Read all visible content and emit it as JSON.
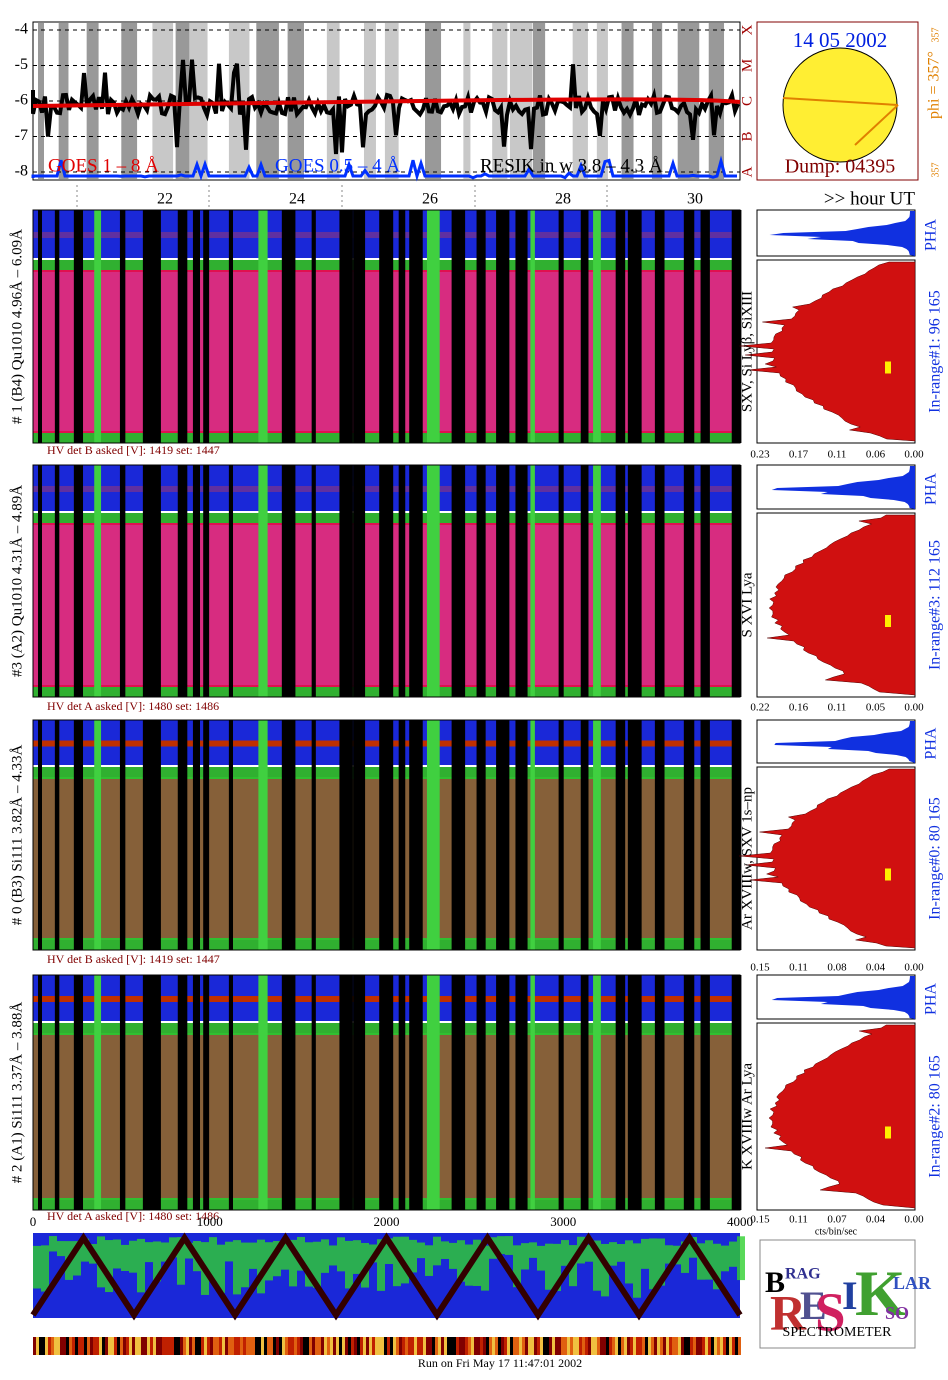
{
  "goes": {
    "yticks": [
      "-4",
      "-5",
      "-6",
      "-7",
      "-8"
    ],
    "classes": [
      "X",
      "M",
      "C",
      "B",
      "A"
    ],
    "legend": [
      "GOES 1 – 8 Å",
      "GOES 0.5 – 4 Å",
      "RESIK in w 3.8 – 4.3 Å"
    ],
    "hours": [
      "22",
      "24",
      "26",
      "28",
      "30"
    ],
    "hour_label": ">> hour UT"
  },
  "sun": {
    "date": "14 05 2002",
    "dump": "Dump: 04395",
    "phi": "phi = 357°",
    "phi_sub": "357",
    "corner": "357"
  },
  "panels": [
    {
      "label": "# 1 (B4) Qu1010 4.96Å – 6.09Å",
      "lines": "SXV, Si Lyβ, SiXIII",
      "inrange": "In-range#1:   96 165",
      "pha": "PHA",
      "hv": "HV det B asked [V]:  1419 set:  1447",
      "xticks": [
        "0.23",
        "0.17",
        "0.11",
        "0.06",
        "0.00"
      ]
    },
    {
      "label": "#3 (A2) Qu1010  4.31Å – 4.89Å",
      "lines": "S XVI Lya",
      "inrange": "In-range#3:  112 165",
      "pha": "PHA",
      "hv": "HV det A asked [V]:  1480 set:  1486",
      "xticks": [
        "0.22",
        "0.16",
        "0.11",
        "0.05",
        "0.00"
      ]
    },
    {
      "label": "# 0 (B3) Si111  3.82Å – 4.33Å",
      "lines": "Ar XVIIIw,  SXV 1s–np",
      "inrange": "In-range#0:   80 165",
      "pha": "PHA",
      "hv": "HV det B asked [V]:  1419 set:  1447",
      "xticks": [
        "0.15",
        "0.11",
        "0.08",
        "0.04",
        "0.00"
      ]
    },
    {
      "label": "# 2 (A1) Si111  3.37Å – 3.88Å",
      "lines": "K XVIIIw  Ar Lya",
      "inrange": "In-range#2:   80 165",
      "pha": "PHA",
      "hv": "HV det A asked [V]:  1480 set:  1486",
      "xticks": [
        "0.15",
        "0.11",
        "0.07",
        "0.04",
        "0.00"
      ]
    }
  ],
  "bottom": {
    "xticks": [
      "0",
      "1000",
      "2000",
      "3000",
      "4000"
    ],
    "units": "cts/bin/sec",
    "run": "Run on Fri May 17 11:47:01 2002"
  },
  "logo": {
    "letters": [
      "B",
      "RAG",
      "R",
      "E",
      "S",
      "I",
      "K",
      "SO",
      "LAR"
    ],
    "subtitle": "SPECTROMETER"
  }
}
